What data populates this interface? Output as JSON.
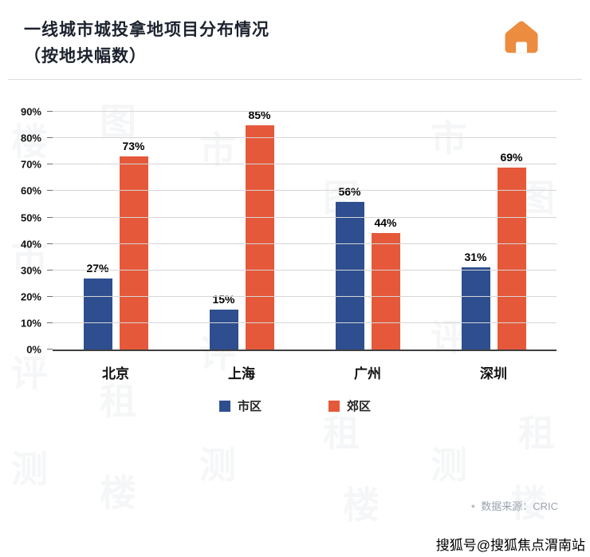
{
  "header": {
    "title_line1": "一线城市城投拿地项目分布情况",
    "title_line2": "（按地块幅数）"
  },
  "chart_data": {
    "type": "bar",
    "title": "一线城市城投拿地项目分布情况（按地块幅数）",
    "categories": [
      "北京",
      "上海",
      "广州",
      "深圳"
    ],
    "series": [
      {
        "name": "市区",
        "color": "#2E4E8F",
        "values": [
          27,
          15,
          56,
          31
        ]
      },
      {
        "name": "郊区",
        "color": "#E5593A",
        "values": [
          73,
          85,
          44,
          69
        ]
      }
    ],
    "value_suffix": "%",
    "ylim": [
      0,
      90
    ],
    "ytick_step": 10,
    "ytick_labels": [
      "0%",
      "10%",
      "20%",
      "30%",
      "40%",
      "50%",
      "60%",
      "70%",
      "80%",
      "90%"
    ],
    "grid": true,
    "legend_position": "bottom"
  },
  "footer": {
    "source_bullet": "●",
    "source": "数据来源：CRIC",
    "publisher": "搜狐号@搜狐焦点渭南站"
  },
  "colors": {
    "accent_blue": "#2E4E8F",
    "accent_orange": "#E5593A",
    "house_icon": "#EC8C3F",
    "gridline": "#d6d6d6"
  },
  "watermark_chars": [
    "楼",
    "市",
    "评",
    "测",
    "图",
    "租"
  ]
}
